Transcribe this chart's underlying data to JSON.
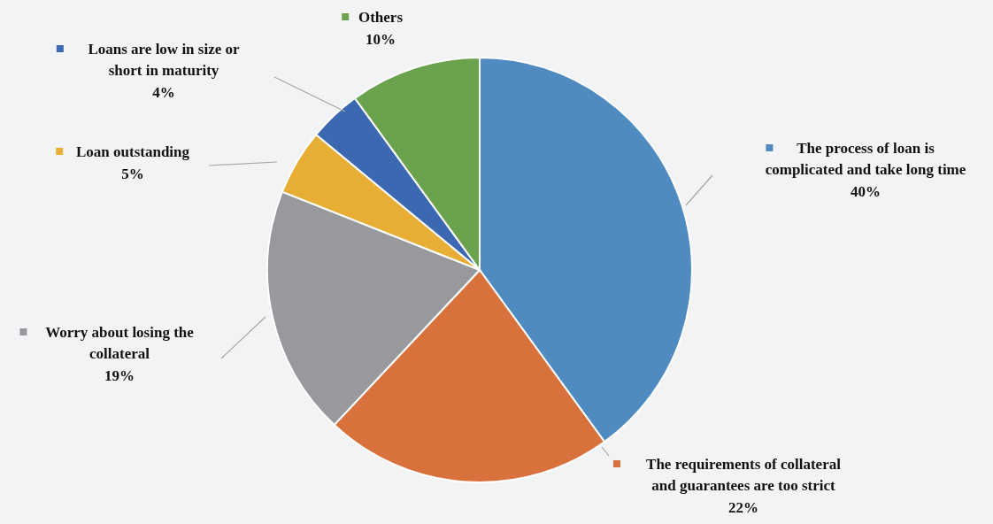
{
  "chart_data": {
    "type": "pie",
    "categories": [
      "The process of loan is complicated and take long time",
      "The requirements of collateral and guarantees are too strict",
      "Worry about losing the collateral",
      "Loan outstanding",
      "Loans are low in size or short in maturity",
      "Others"
    ],
    "values": [
      40,
      22,
      19,
      5,
      4,
      10
    ],
    "colors": [
      "#4f8bc0",
      "#d9713d",
      "#97999d",
      "#e8ad34",
      "#3b68b1",
      "#6aa24d"
    ],
    "value_labels": [
      "40%",
      "22%",
      "19%",
      "5%",
      "4%",
      "10%"
    ],
    "legend": "right"
  }
}
